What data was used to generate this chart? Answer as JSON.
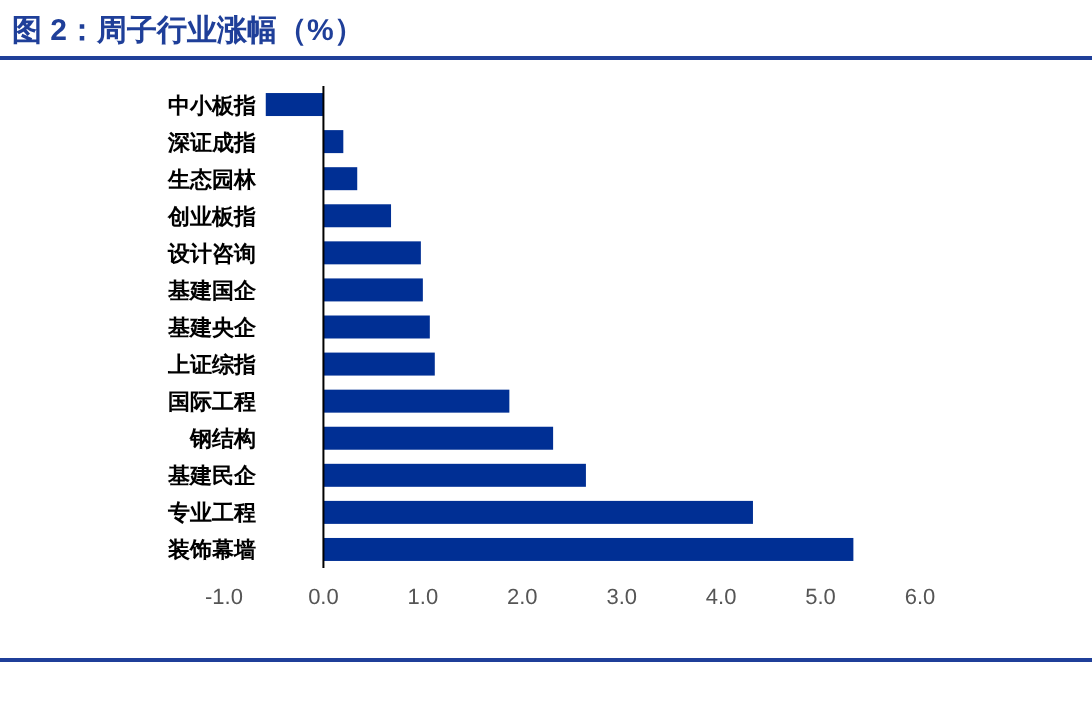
{
  "chart_data": {
    "type": "bar",
    "orientation": "horizontal",
    "title": "图 2：周子行业涨幅（%）",
    "categories": [
      "中小板指",
      "深证成指",
      "生态园林",
      "创业板指",
      "设计咨询",
      "基建国企",
      "基建央企",
      "上证综指",
      "国际工程",
      "钢结构",
      "基建民企",
      "专业工程",
      "装饰幕墙"
    ],
    "values": [
      -0.58,
      0.2,
      0.34,
      0.68,
      0.98,
      1.0,
      1.07,
      1.12,
      1.87,
      2.31,
      2.64,
      4.32,
      5.33
    ],
    "color": "#002f94",
    "xlim": [
      -1,
      6
    ],
    "xticks": [
      {
        "value": -1,
        "label": "-1.0"
      },
      {
        "value": 0,
        "label": "0.0"
      },
      {
        "value": 1,
        "label": "1.0"
      },
      {
        "value": 2,
        "label": "2.0"
      },
      {
        "value": 3,
        "label": "3.0"
      },
      {
        "value": 4,
        "label": "4.0"
      },
      {
        "value": 5,
        "label": "5.0"
      },
      {
        "value": 6,
        "label": "6.0"
      }
    ]
  }
}
